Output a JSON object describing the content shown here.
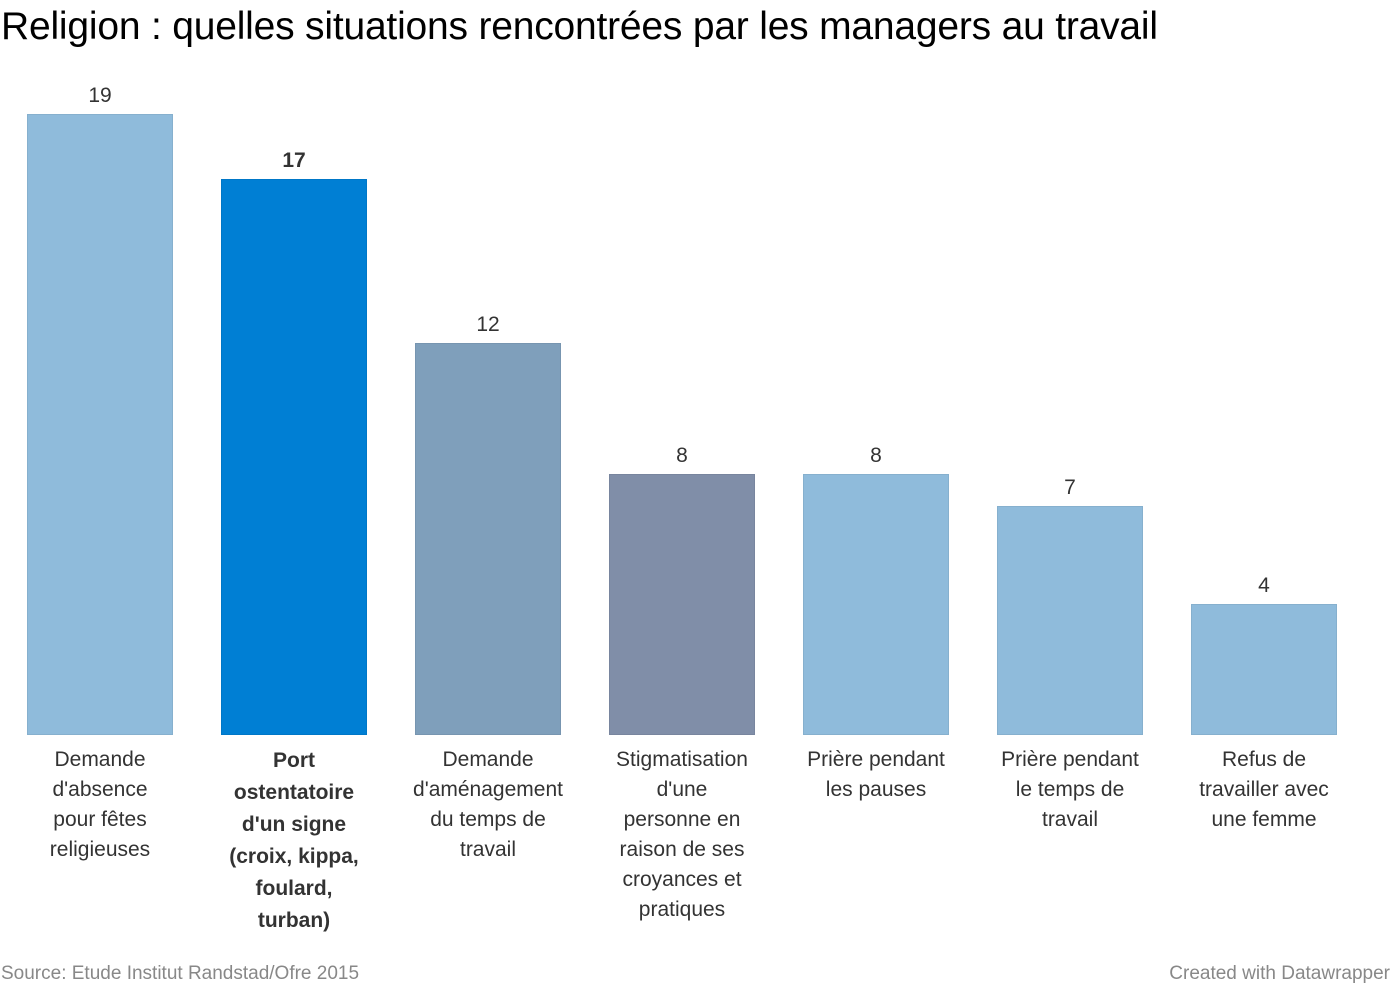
{
  "chart_data": {
    "type": "bar",
    "title": "Religion : quelles situations rencontrées par les managers au travail",
    "xlabel": "",
    "ylabel": "",
    "ylim": [
      0,
      19
    ],
    "grid": false,
    "legend": "none",
    "categories": [
      "Demande d'absence pour fêtes religieuses",
      "Port ostentatoire d'un signe (croix, kippa, foulard, turban)",
      "Demande d'aménagement du temps de travail",
      "Stigmatisation d'une personne en raison de ses croyances et pratiques",
      "Prière pendant les pauses",
      "Prière pendant le temps de travail",
      "Refus de travailler avec une femme"
    ],
    "values": [
      19,
      17,
      12,
      8,
      8,
      7,
      4
    ],
    "value_labels": [
      "19",
      "17",
      "12",
      "8",
      "8",
      "7",
      "4"
    ],
    "colors": [
      "#8fbbdb",
      "#007fd4",
      "#7f9fbb",
      "#808ea8",
      "#8fbbdb",
      "#8fbbdb",
      "#8fbbdb"
    ],
    "highlighted_index": 1
  },
  "footer": {
    "source": "Source: Etude Institut Randstad/Ofre 2015",
    "credit": "Created with Datawrapper"
  }
}
